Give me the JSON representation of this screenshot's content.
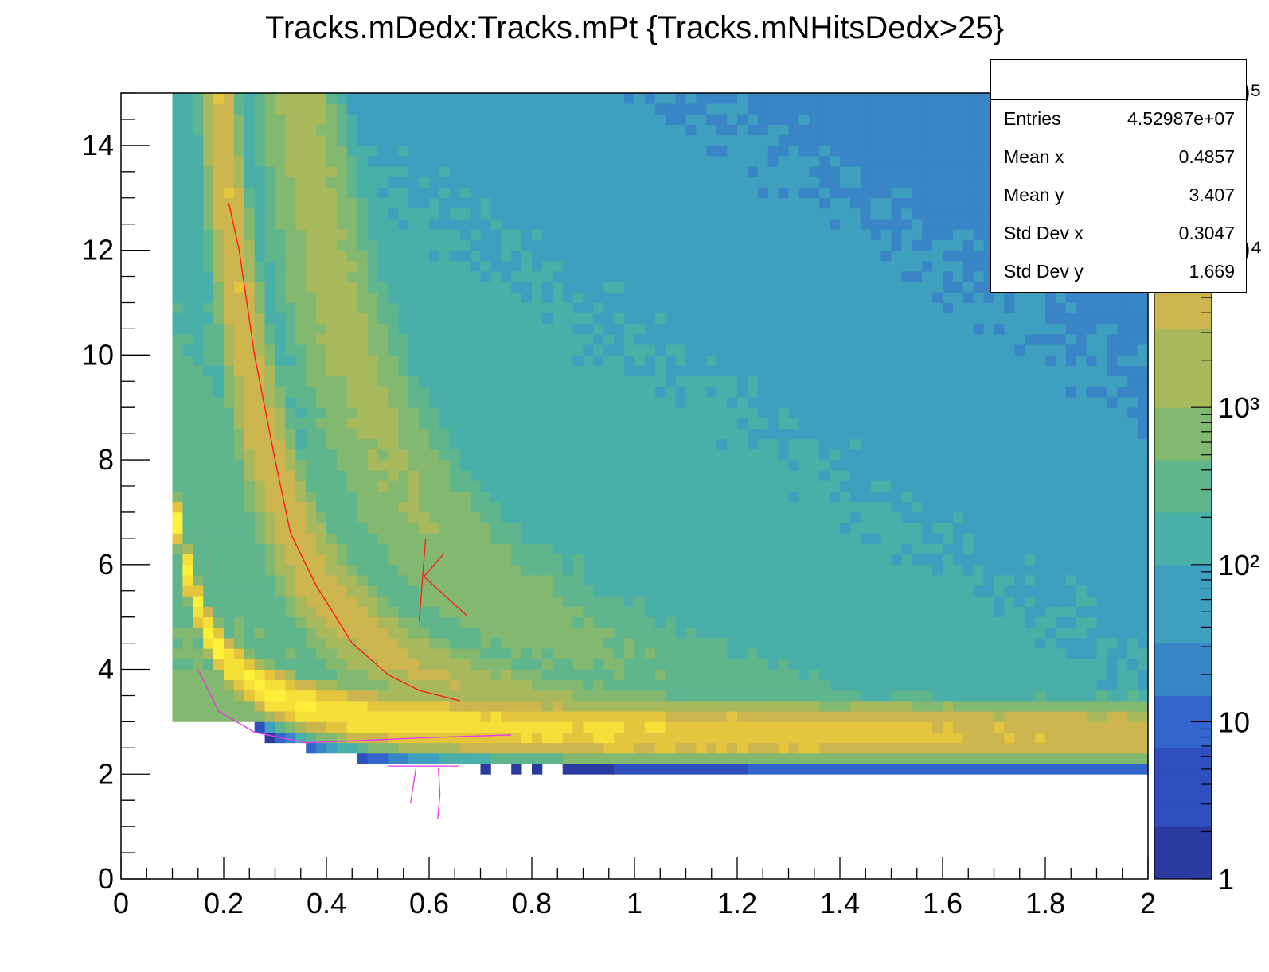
{
  "title": "Tracks.mDedx:Tracks.mPt {Tracks.mNHitsDedx>25}",
  "stats": {
    "rows": [
      {
        "label": "Entries",
        "value": "4.52987e+07"
      },
      {
        "label": "Mean x",
        "value": "0.4857"
      },
      {
        "label": "Mean y",
        "value": "3.407"
      },
      {
        "label": "Std Dev x",
        "value": "0.3047"
      },
      {
        "label": "Std Dev y",
        "value": "1.669"
      }
    ]
  },
  "colors": {
    "palette": [
      "#2a3a9e",
      "#2f4fbe",
      "#3366cc",
      "#3a85c6",
      "#3e9fbf",
      "#4aafa8",
      "#5fb58c",
      "#82b870",
      "#a8b85c",
      "#cdb550",
      "#e6c53e",
      "#f5e03a",
      "#fff13a"
    ],
    "annotation_red": "#ff1a1a",
    "annotation_magenta": "#e23ce6"
  },
  "chart_data": {
    "type": "heatmap",
    "title": "Tracks.mDedx:Tracks.mPt {Tracks.mNHitsDedx>25}",
    "xlabel": "",
    "ylabel": "",
    "xlim": [
      0,
      2
    ],
    "ylim": [
      0,
      15
    ],
    "x_ticks": [
      "0",
      "0.2",
      "0.4",
      "0.6",
      "0.8",
      "1",
      "1.2",
      "1.4",
      "1.6",
      "1.8",
      "2"
    ],
    "y_ticks": [
      "0",
      "2",
      "4",
      "6",
      "8",
      "10",
      "12",
      "14"
    ],
    "z_scale": "log",
    "z_range": [
      1,
      100000
    ],
    "z_ticks": [
      "1",
      "10",
      "10²",
      "10³",
      "10⁴",
      "10⁵"
    ],
    "bands": [
      {
        "x_min": 0.1,
        "plateau_y": 2.7,
        "peak_log_counts": 4.8
      },
      {
        "x_min": 0.1,
        "k": 0.45,
        "peak_log_counts": 4.0
      },
      {
        "x_min": 0.1,
        "k": 1.5,
        "peak_log_counts": 3.6
      }
    ],
    "annotations": [
      {
        "type": "hand-drawn curve",
        "color": "red",
        "points": [
          [
            0.21,
            12.9
          ],
          [
            0.23,
            12.0
          ],
          [
            0.26,
            10.0
          ],
          [
            0.3,
            8.0
          ],
          [
            0.33,
            6.6
          ],
          [
            0.38,
            5.6
          ],
          [
            0.45,
            4.5
          ],
          [
            0.52,
            3.9
          ],
          [
            0.58,
            3.6
          ],
          [
            0.66,
            3.4
          ]
        ]
      },
      {
        "type": "hand-drawn mark",
        "color": "red",
        "shape": "K",
        "position": [
          0.59,
          5.8
        ]
      },
      {
        "type": "hand-drawn curve",
        "color": "magenta",
        "points": [
          [
            0.15,
            4.0
          ],
          [
            0.19,
            3.2
          ],
          [
            0.26,
            2.8
          ],
          [
            0.36,
            2.6
          ],
          [
            0.48,
            2.65
          ],
          [
            0.6,
            2.7
          ],
          [
            0.76,
            2.75
          ]
        ]
      },
      {
        "type": "hand-drawn mark",
        "color": "magenta",
        "shape": "π",
        "position": [
          0.57,
          2.2
        ]
      }
    ]
  }
}
